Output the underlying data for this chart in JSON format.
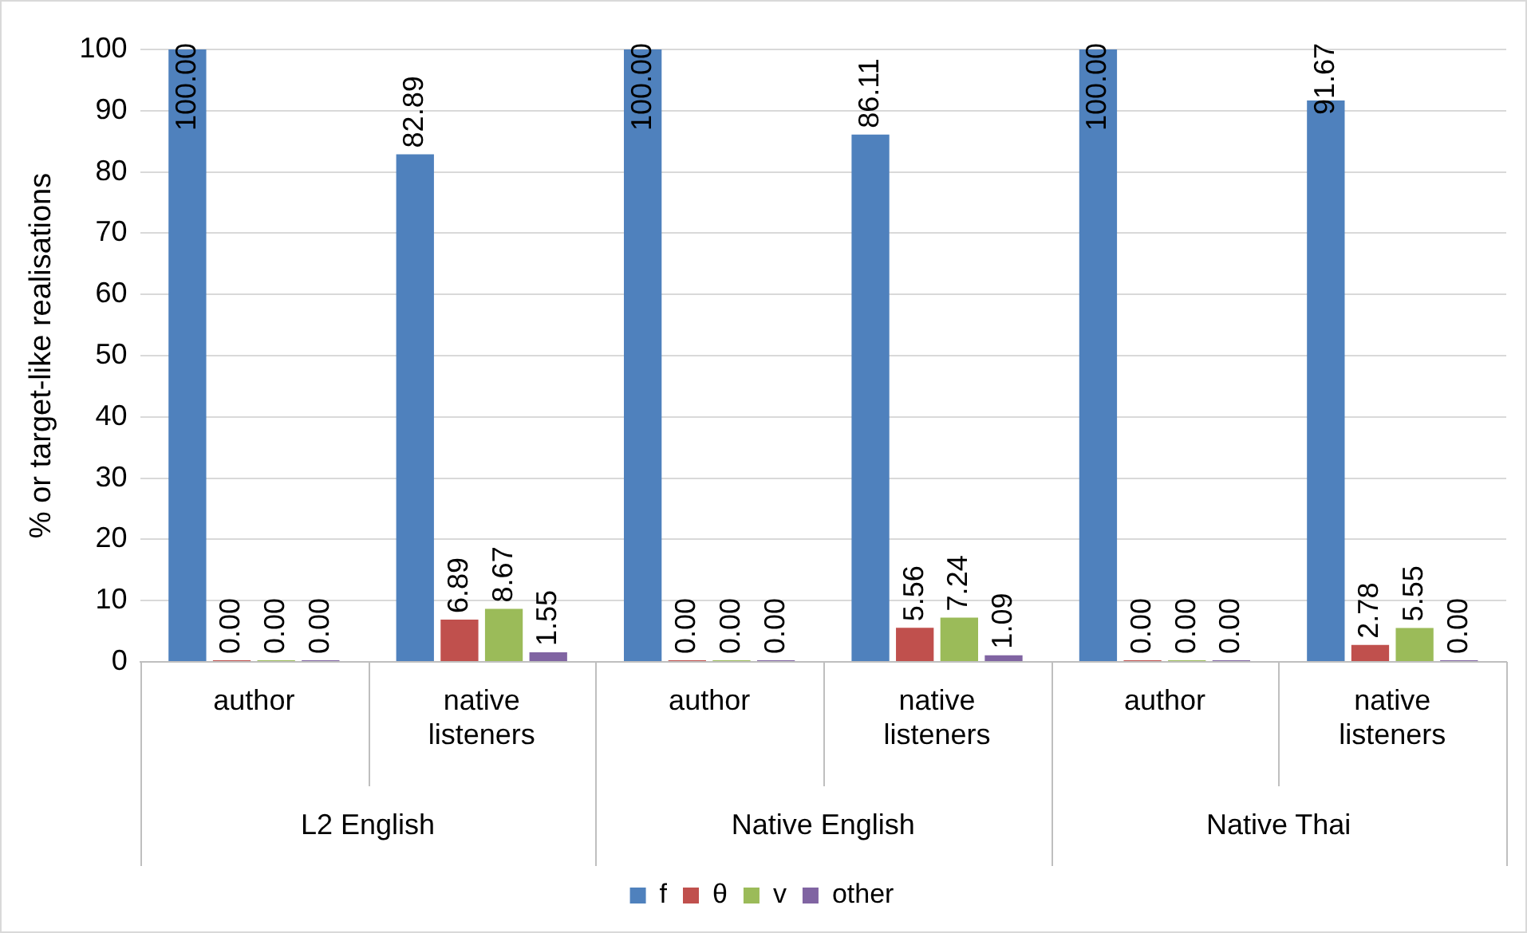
{
  "chart_data": {
    "type": "bar",
    "ylabel": "% or target-like realisations",
    "categories": [
      "author",
      "native listeners",
      "author",
      "native listeners",
      "author",
      "native listeners"
    ],
    "annotations": [
      "L2 English",
      "Native English",
      "Native Thai"
    ],
    "series": [
      {
        "name": "f",
        "color": "#4f81bd",
        "values": [
          100,
          82.89,
          100,
          86.11,
          100,
          91.67
        ],
        "value_labels": [
          "100.00",
          "82.89",
          "100.00",
          "86.11",
          "100.00",
          "91.67"
        ]
      },
      {
        "name": "θ",
        "color": "#c0504d",
        "values": [
          0,
          6.89,
          0,
          5.56,
          0,
          2.78
        ],
        "value_labels": [
          "0.00",
          "6.89",
          "0.00",
          "5.56",
          "0.00",
          "2.78"
        ]
      },
      {
        "name": "v",
        "color": "#9bbb59",
        "values": [
          0,
          8.67,
          0,
          7.24,
          0,
          5.55
        ],
        "value_labels": [
          "0.00",
          "8.67",
          "0.00",
          "7.24",
          "0.00",
          "5.55"
        ]
      },
      {
        "name": "other",
        "color": "#8064a2",
        "values": [
          0,
          1.55,
          0,
          1.09,
          0,
          0
        ],
        "value_labels": [
          "0.00",
          "1.55",
          "0.00",
          "1.09",
          "0.00",
          "0.00"
        ]
      }
    ],
    "ylim": [
      0,
      100
    ],
    "yticks": [
      0,
      10,
      20,
      30,
      40,
      50,
      60,
      70,
      80,
      90,
      100
    ],
    "grid": "y",
    "legend": "bottom"
  }
}
